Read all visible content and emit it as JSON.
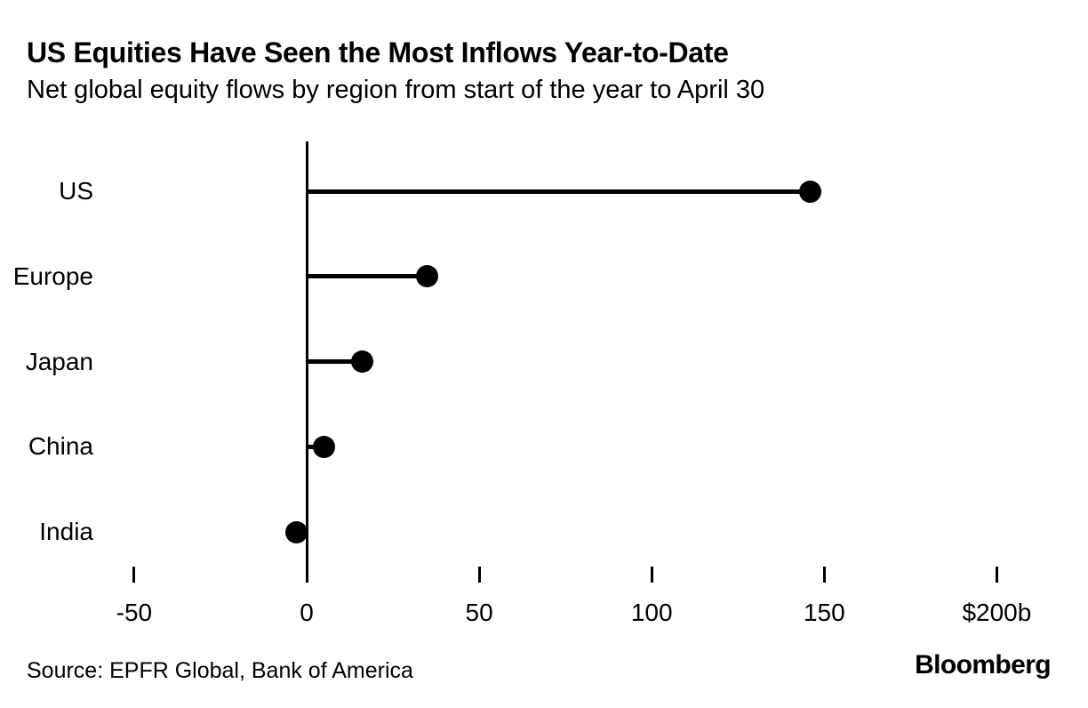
{
  "header": {
    "title": "US Equities Have Seen the Most Inflows Year-to-Date",
    "subtitle": "Net global equity flows by region from start of the year to April 30"
  },
  "chart_data": {
    "type": "bar",
    "variant": "lollipop",
    "orientation": "horizontal",
    "title": "US Equities Have Seen the Most Inflows Year-to-Date",
    "subtitle": "Net global equity flows by region from start of the year to April 30",
    "categories": [
      "US",
      "Europe",
      "Japan",
      "China",
      "India"
    ],
    "values": [
      146,
      35,
      16,
      5,
      -3
    ],
    "unit": "billions of US dollars",
    "xlabel": "",
    "ylabel": "",
    "xlim": [
      -50,
      200
    ],
    "x_ticks": [
      -50,
      0,
      50,
      100,
      150,
      200
    ],
    "x_tick_labels": [
      "-50",
      "0",
      "50",
      "100",
      "150",
      "$200b"
    ],
    "grid": false,
    "legend": "none",
    "marker_color": "#000000",
    "background_color": "#ffffff"
  },
  "footer": {
    "source": "Source: EPFR Global, Bank of America",
    "brand": "Bloomberg"
  }
}
